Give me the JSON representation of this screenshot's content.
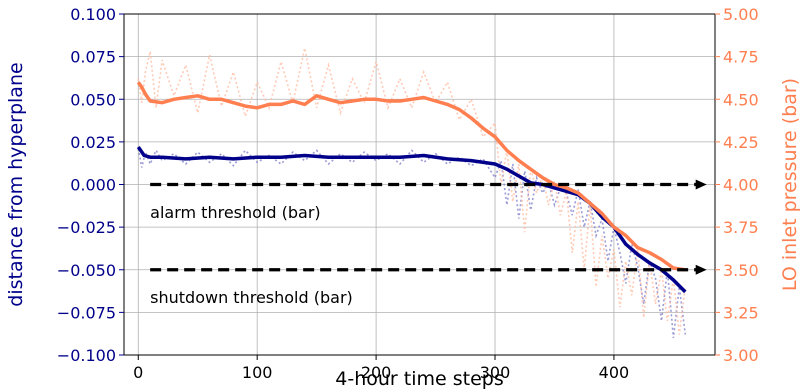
{
  "chart_data": {
    "type": "line",
    "xlabel": "4-hour time steps",
    "ylabel_left": "distance from hyperplane",
    "ylabel_right": "LO inlet pressure (bar)",
    "xlim": [
      -12,
      485
    ],
    "ylim_left": [
      -0.1,
      0.1
    ],
    "ylim_right": [
      3.0,
      5.0
    ],
    "x_ticks": [
      0,
      100,
      200,
      300,
      400
    ],
    "x_tick_labels": [
      "0",
      "100",
      "200",
      "300",
      "400"
    ],
    "y_left_ticks": [
      -0.1,
      -0.075,
      -0.05,
      -0.025,
      0.0,
      0.025,
      0.05,
      0.075,
      0.1
    ],
    "y_left_tick_labels": [
      "−0.100",
      "−0.075",
      "−0.050",
      "−0.025",
      "0.000",
      "0.025",
      "0.050",
      "0.075",
      "0.100"
    ],
    "y_right_ticks": [
      3.0,
      3.25,
      3.5,
      3.75,
      4.0,
      4.25,
      4.5,
      4.75,
      5.0
    ],
    "y_right_tick_labels": [
      "3.00",
      "3.25",
      "3.50",
      "3.75",
      "4.00",
      "4.25",
      "4.50",
      "4.75",
      "5.00"
    ],
    "grid": true,
    "colors": {
      "left_axis": "#00008b",
      "right_axis": "#ff7f50",
      "distance_smooth": "#00008b",
      "distance_raw": "#7a7ac8",
      "pressure_smooth": "#ff7f50",
      "pressure_raw": "#ffb89e",
      "threshold": "#000000"
    },
    "series": [
      {
        "key": "distance_smooth",
        "axis": "left",
        "style": "solid",
        "x": [
          0,
          5,
          10,
          20,
          40,
          60,
          80,
          100,
          120,
          140,
          160,
          180,
          200,
          220,
          240,
          260,
          280,
          300,
          310,
          320,
          330,
          340,
          350,
          360,
          370,
          380,
          390,
          400,
          410,
          420,
          430,
          440,
          450,
          460
        ],
        "y": [
          0.022,
          0.017,
          0.016,
          0.016,
          0.015,
          0.016,
          0.015,
          0.016,
          0.016,
          0.017,
          0.016,
          0.016,
          0.016,
          0.016,
          0.017,
          0.015,
          0.014,
          0.012,
          0.009,
          0.005,
          0.001,
          0.0,
          -0.002,
          -0.004,
          -0.006,
          -0.011,
          -0.019,
          -0.025,
          -0.035,
          -0.041,
          -0.046,
          -0.05,
          -0.056,
          -0.063
        ]
      },
      {
        "key": "distance_raw",
        "axis": "left",
        "style": "dotted",
        "x": [
          0,
          3,
          6,
          10,
          15,
          20,
          30,
          40,
          50,
          60,
          70,
          80,
          90,
          100,
          110,
          120,
          130,
          140,
          150,
          160,
          170,
          180,
          190,
          200,
          210,
          220,
          230,
          240,
          250,
          260,
          270,
          280,
          290,
          300,
          305,
          310,
          315,
          320,
          325,
          330,
          335,
          340,
          345,
          350,
          355,
          360,
          365,
          370,
          375,
          380,
          385,
          390,
          395,
          400,
          405,
          410,
          415,
          420,
          425,
          430,
          435,
          440,
          445,
          450,
          455,
          460
        ],
        "y": [
          0.021,
          0.01,
          0.019,
          0.012,
          0.02,
          0.014,
          0.018,
          0.012,
          0.019,
          0.013,
          0.018,
          0.011,
          0.02,
          0.013,
          0.017,
          0.012,
          0.019,
          0.014,
          0.02,
          0.012,
          0.018,
          0.013,
          0.019,
          0.014,
          0.018,
          0.012,
          0.02,
          0.013,
          0.018,
          0.012,
          0.016,
          0.011,
          0.015,
          0.004,
          0.014,
          -0.012,
          0.012,
          -0.02,
          0.008,
          -0.015,
          0.004,
          -0.005,
          0.001,
          -0.012,
          -0.002,
          -0.005,
          -0.018,
          -0.003,
          -0.025,
          -0.01,
          -0.03,
          -0.02,
          -0.045,
          -0.025,
          -0.04,
          -0.058,
          -0.035,
          -0.048,
          -0.07,
          -0.045,
          -0.055,
          -0.08,
          -0.05,
          -0.09,
          -0.06,
          -0.088
        ]
      },
      {
        "key": "pressure_smooth",
        "axis": "right",
        "style": "solid",
        "x": [
          0,
          3,
          6,
          10,
          20,
          30,
          40,
          50,
          60,
          70,
          80,
          90,
          100,
          110,
          120,
          130,
          140,
          150,
          160,
          170,
          180,
          190,
          200,
          210,
          220,
          230,
          240,
          250,
          260,
          270,
          280,
          290,
          300,
          310,
          320,
          330,
          340,
          350,
          360,
          370,
          380,
          390,
          400,
          410,
          420,
          430,
          440,
          450,
          460
        ],
        "y": [
          4.6,
          4.57,
          4.53,
          4.49,
          4.48,
          4.5,
          4.51,
          4.52,
          4.5,
          4.5,
          4.48,
          4.46,
          4.45,
          4.47,
          4.47,
          4.49,
          4.47,
          4.52,
          4.5,
          4.48,
          4.49,
          4.5,
          4.5,
          4.49,
          4.49,
          4.5,
          4.51,
          4.49,
          4.47,
          4.44,
          4.39,
          4.33,
          4.28,
          4.2,
          4.14,
          4.09,
          4.04,
          4.0,
          3.98,
          3.95,
          3.89,
          3.83,
          3.75,
          3.7,
          3.63,
          3.6,
          3.56,
          3.51,
          3.5
        ]
      },
      {
        "key": "pressure_raw",
        "axis": "right",
        "style": "dotted",
        "x": [
          0,
          3,
          6,
          10,
          15,
          20,
          30,
          40,
          50,
          60,
          70,
          80,
          90,
          100,
          110,
          120,
          130,
          140,
          150,
          160,
          170,
          180,
          190,
          200,
          210,
          220,
          230,
          240,
          250,
          260,
          270,
          280,
          290,
          300,
          305,
          310,
          315,
          320,
          325,
          330,
          335,
          340,
          345,
          350,
          355,
          360,
          365,
          370,
          375,
          380,
          385,
          390,
          395,
          400,
          405,
          410,
          415,
          420,
          425,
          430,
          435,
          440,
          445,
          450,
          455,
          460
        ],
        "y": [
          4.62,
          4.48,
          4.66,
          4.78,
          4.45,
          4.73,
          4.52,
          4.7,
          4.42,
          4.76,
          4.46,
          4.66,
          4.4,
          4.6,
          4.45,
          4.72,
          4.48,
          4.8,
          4.45,
          4.7,
          4.42,
          4.62,
          4.48,
          4.72,
          4.45,
          4.62,
          4.45,
          4.66,
          4.48,
          4.6,
          4.38,
          4.5,
          4.28,
          4.36,
          4.0,
          4.2,
          3.9,
          4.12,
          3.72,
          4.1,
          3.95,
          4.05,
          3.88,
          4.02,
          3.82,
          3.96,
          3.6,
          3.9,
          3.5,
          3.88,
          3.4,
          3.7,
          3.45,
          3.62,
          3.28,
          3.55,
          3.35,
          3.62,
          3.22,
          3.55,
          3.3,
          3.5,
          3.2,
          3.45,
          3.12,
          3.4
        ]
      }
    ],
    "thresholds": [
      {
        "key": "alarm",
        "axis": "right",
        "y": 4.0,
        "x_start": 10,
        "x_end": 478,
        "label": "alarm threshold (bar)",
        "label_x": 10,
        "label_y": 3.84
      },
      {
        "key": "shutdown",
        "axis": "right",
        "y": 3.5,
        "x_start": 10,
        "x_end": 478,
        "label": "shutdown threshold (bar)",
        "label_x": 10,
        "label_y": 3.34
      }
    ]
  }
}
